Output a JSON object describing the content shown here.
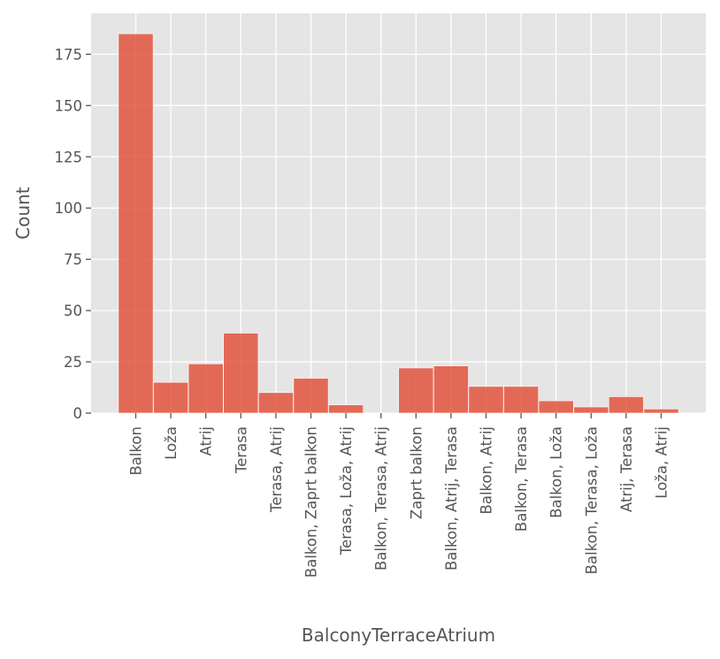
{
  "chart_data": {
    "type": "bar",
    "title": "",
    "xlabel": "BalconyTerraceAtrium",
    "ylabel": "Count",
    "categories": [
      "Balkon",
      "Loža",
      "Atrij",
      "Terasa",
      "Terasa, Atrij",
      "Balkon, Zaprt balkon",
      "Terasa, Loža, Atrij",
      "Balkon, Terasa, Atrij",
      "Zaprt balkon",
      "Balkon, Atrij, Terasa",
      "Balkon, Atrij",
      "Balkon, Terasa",
      "Balkon, Loža",
      "Balkon, Terasa, Loža",
      "Atrij, Terasa",
      "Loža, Atrij"
    ],
    "values": [
      185,
      15,
      24,
      39,
      10,
      17,
      4,
      0,
      22,
      23,
      13,
      13,
      6,
      3,
      8,
      2
    ],
    "ylim": [
      0,
      195
    ],
    "yticks": [
      0,
      25,
      50,
      75,
      100,
      125,
      150,
      175
    ],
    "grid": true,
    "colors": {
      "bar": "#e24a33",
      "panel": "#e5e5e5",
      "grid": "#ffffff",
      "text": "#555555"
    }
  }
}
